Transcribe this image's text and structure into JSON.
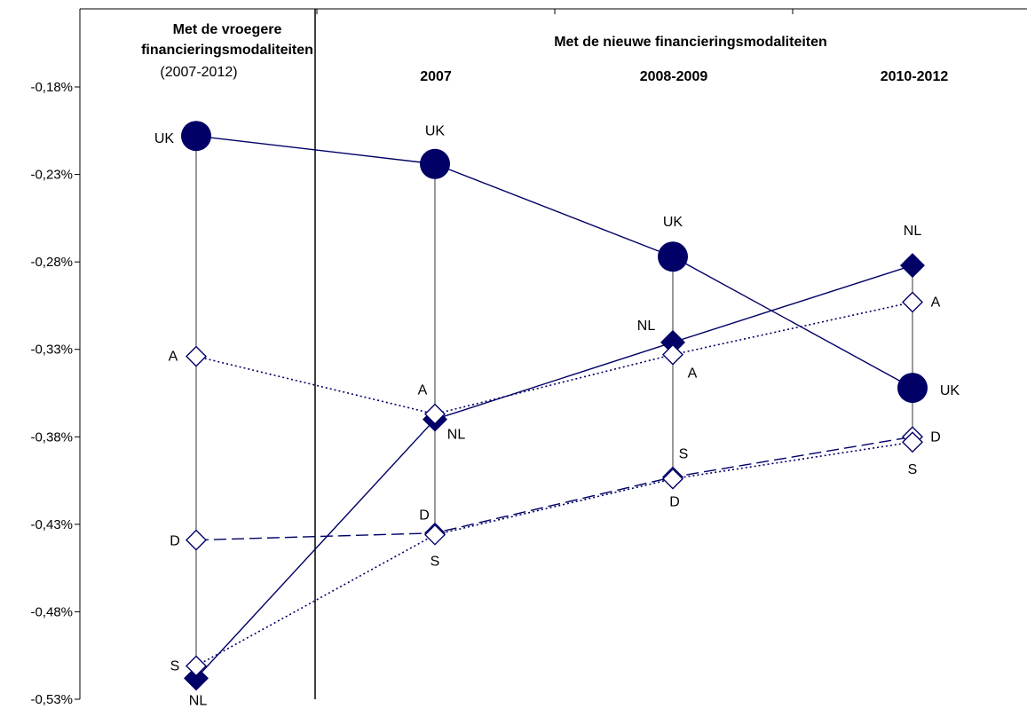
{
  "chart_data": {
    "type": "line",
    "y_ticks": [
      "-0,18%",
      "-0,23%",
      "-0,28%",
      "-0,33%",
      "-0,38%",
      "-0,43%",
      "-0,48%",
      "-0,53%"
    ],
    "y_tick_values": [
      -0.18,
      -0.23,
      -0.28,
      -0.33,
      -0.38,
      -0.43,
      -0.48,
      -0.53
    ],
    "ylim": [
      -0.53,
      -0.155
    ],
    "grid": false,
    "headers": {
      "left_line1": "Met de vroegere",
      "left_line2": "financieringsmodaliteiten",
      "left_line3": "(2007-2012)",
      "right_title": "Met de nieuwe financieringsmodaliteiten",
      "col_2007": "2007",
      "col_2008_2009": "2008-2009",
      "col_2010_2012": "2010-2012"
    },
    "periods": [
      "(2007-2012)",
      "2007",
      "2008-2009",
      "2010-2012"
    ],
    "colors": {
      "series": "#000066",
      "axis": "#000000"
    },
    "series": [
      {
        "name": "UK",
        "marker": "circle-filled",
        "line": "solid",
        "values": [
          -0.208,
          -0.224,
          -0.277,
          -0.352
        ],
        "labels": [
          "UK",
          "UK",
          "UK",
          "UK"
        ]
      },
      {
        "name": "NL",
        "marker": "diamond-filled",
        "line": "solid",
        "values": [
          -0.518,
          -0.37,
          -0.326,
          -0.282
        ],
        "labels": [
          "NL",
          "NL",
          "NL",
          "NL"
        ]
      },
      {
        "name": "A",
        "marker": "diamond-open",
        "line": "dotted",
        "values": [
          -0.334,
          -0.367,
          -0.333,
          -0.303
        ],
        "labels": [
          "A",
          "A",
          "A",
          "A"
        ]
      },
      {
        "name": "D",
        "marker": "diamond-open",
        "line": "dashed",
        "values": [
          -0.439,
          -0.435,
          -0.403,
          -0.38
        ],
        "labels": [
          "D",
          "D",
          "D",
          "D"
        ]
      },
      {
        "name": "S",
        "marker": "diamond-open",
        "line": "dotted",
        "values": [
          -0.511,
          -0.436,
          -0.404,
          -0.383
        ],
        "labels": [
          "S",
          "S",
          "S",
          "S"
        ]
      }
    ]
  }
}
